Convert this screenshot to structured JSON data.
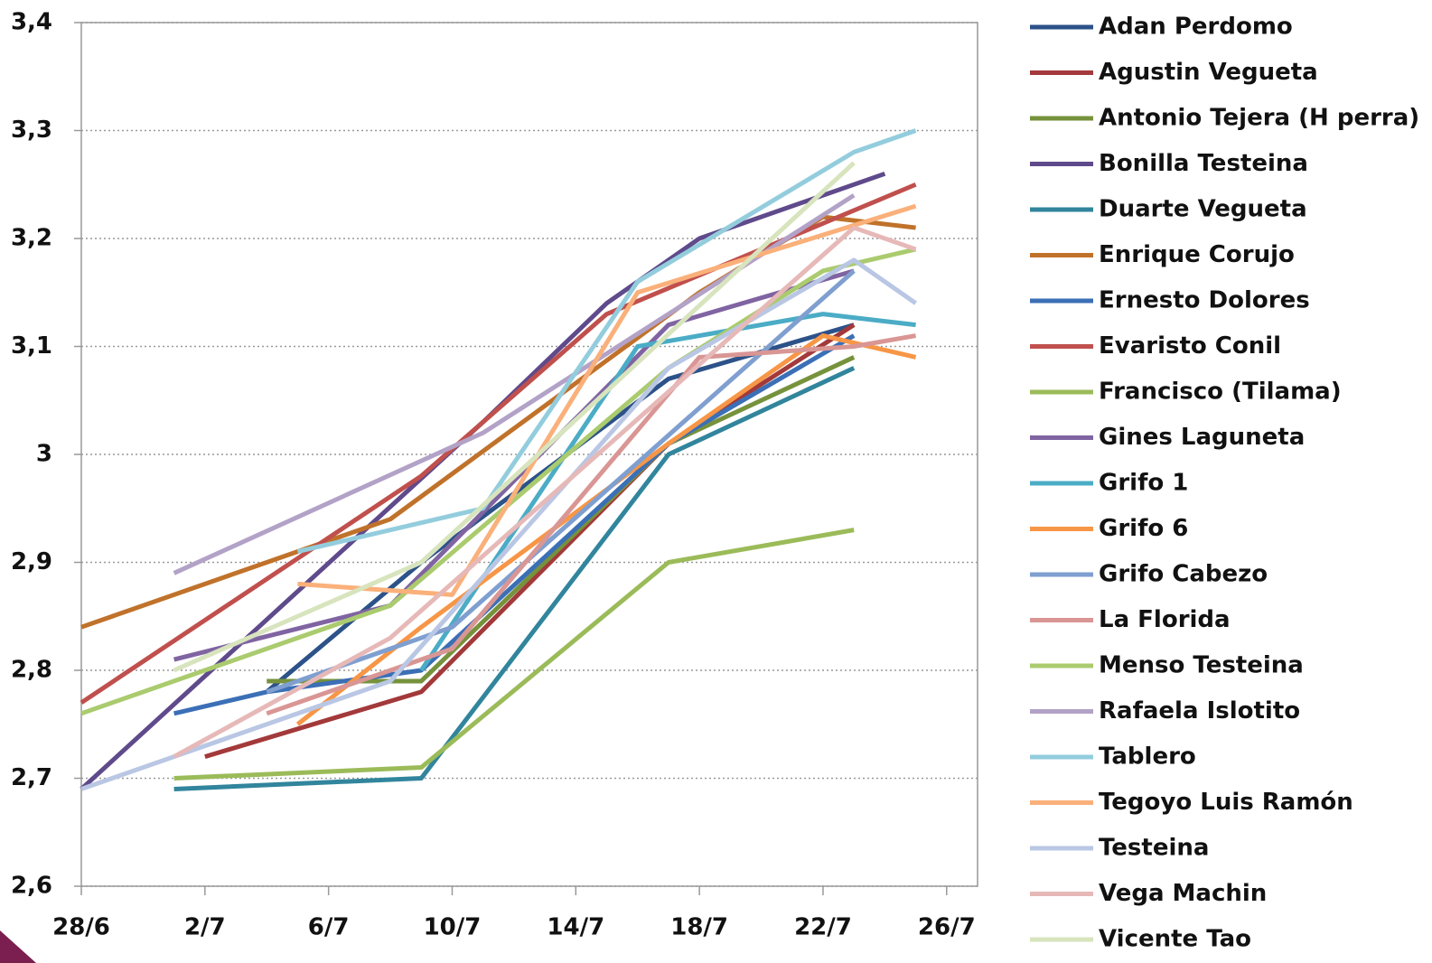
{
  "chart_data": {
    "type": "line",
    "legend": "right",
    "grid": true,
    "xlim": [
      "28/6",
      "27/7"
    ],
    "xticks": [
      "28/6",
      "2/7",
      "6/7",
      "10/7",
      "14/7",
      "18/7",
      "22/7",
      "26/7"
    ],
    "ylim": [
      2.6,
      3.4
    ],
    "yticks": [
      {
        "value": 2.6,
        "label": "2,6"
      },
      {
        "value": 2.7,
        "label": "2,7"
      },
      {
        "value": 2.8,
        "label": "2,8"
      },
      {
        "value": 2.9,
        "label": "2,9"
      },
      3,
      {
        "value": 3.1,
        "label": "3,1"
      },
      {
        "value": 3.2,
        "label": "3,2"
      },
      {
        "value": 3.3,
        "label": "3,3"
      },
      {
        "value": 3.4,
        "label": "3,4"
      }
    ],
    "series": [
      {
        "name": "Adan Perdomo",
        "color": "#2c5289",
        "x": [
          "4/7",
          "9/7",
          "17/7",
          "23/7"
        ],
        "values": [
          2.78,
          2.9,
          3.07,
          3.12
        ]
      },
      {
        "name": "Agustin Vegueta",
        "color": "#a3393a",
        "x": [
          "2/7",
          "9/7",
          "17/7",
          "23/7"
        ],
        "values": [
          2.72,
          2.78,
          3.01,
          3.12
        ]
      },
      {
        "name": "Antonio Tejera (H perra)",
        "color": "#76923c",
        "x": [
          "4/7",
          "9/7",
          "17/7",
          "23/7"
        ],
        "values": [
          2.79,
          2.79,
          3.01,
          3.09
        ]
      },
      {
        "name": "Bonilla Testeina",
        "color": "#5f4a8b",
        "x": [
          "28/6",
          "11/7",
          "15/7",
          "18/7",
          "24/7"
        ],
        "values": [
          2.69,
          3.03,
          3.14,
          3.2,
          3.26
        ]
      },
      {
        "name": "Duarte Vegueta",
        "color": "#31859c",
        "x": [
          "1/7",
          "9/7",
          "17/7",
          "23/7"
        ],
        "values": [
          2.69,
          2.7,
          3.0,
          3.08
        ]
      },
      {
        "name": "Enrique Corujo",
        "color": "#c0722a",
        "x": [
          "28/6",
          "8/7",
          "18/7",
          "22/7",
          "25/7"
        ],
        "values": [
          2.84,
          2.94,
          3.15,
          3.22,
          3.21
        ]
      },
      {
        "name": "Ernesto Dolores",
        "color": "#3b6fb6",
        "x": [
          "1/7",
          "4/7",
          "9/7",
          "17/7",
          "23/7"
        ],
        "values": [
          2.76,
          2.78,
          2.8,
          3.01,
          3.11
        ]
      },
      {
        "name": "Evaristo Conil",
        "color": "#c0504d",
        "x": [
          "28/6",
          "9/7",
          "15/7",
          "25/7"
        ],
        "values": [
          2.77,
          2.98,
          3.13,
          3.25
        ]
      },
      {
        "name": "Francisco (Tilama)",
        "color": "#9bbb59",
        "x": [
          "1/7",
          "9/7",
          "17/7",
          "23/7"
        ],
        "values": [
          2.7,
          2.71,
          2.9,
          2.93
        ]
      },
      {
        "name": "Gines Laguneta",
        "color": "#8064a2",
        "x": [
          "1/7",
          "8/7",
          "17/7",
          "23/7"
        ],
        "values": [
          2.81,
          2.86,
          3.12,
          3.17
        ]
      },
      {
        "name": "Grifo 1",
        "color": "#4bacc6",
        "x": [
          "9/7",
          "16/7",
          "22/7",
          "25/7"
        ],
        "values": [
          2.8,
          3.1,
          3.13,
          3.12
        ]
      },
      {
        "name": "Grifo 6",
        "color": "#f79646",
        "x": [
          "5/7",
          "9/7",
          "17/7",
          "22/7",
          "25/7"
        ],
        "values": [
          2.75,
          2.84,
          3.01,
          3.11,
          3.09
        ]
      },
      {
        "name": "Grifo Cabezo",
        "color": "#7f9fd0",
        "x": [
          "4/7",
          "10/7",
          "23/7"
        ],
        "values": [
          2.78,
          2.84,
          3.17
        ]
      },
      {
        "name": "La Florida",
        "color": "#d99694",
        "x": [
          "4/7",
          "10/7",
          "18/7",
          "23/7",
          "25/7"
        ],
        "values": [
          2.76,
          2.82,
          3.09,
          3.1,
          3.11
        ]
      },
      {
        "name": "Menso Testeina",
        "color": "#aacb6e",
        "x": [
          "28/6",
          "8/7",
          "17/7",
          "22/7",
          "25/7"
        ],
        "values": [
          2.76,
          2.86,
          3.08,
          3.17,
          3.19
        ]
      },
      {
        "name": "Rafaela Islotito",
        "color": "#b3a2c7",
        "x": [
          "1/7",
          "11/7",
          "23/7"
        ],
        "values": [
          2.89,
          3.02,
          3.24
        ]
      },
      {
        "name": "Tablero",
        "color": "#93cddd",
        "x": [
          "5/7",
          "11/7",
          "16/7",
          "23/7",
          "25/7"
        ],
        "values": [
          2.91,
          2.95,
          3.16,
          3.28,
          3.3
        ]
      },
      {
        "name": "Tegoyo Luis Ramón",
        "color": "#fab07a",
        "x": [
          "5/7",
          "10/7",
          "16/7",
          "25/7"
        ],
        "values": [
          2.88,
          2.87,
          3.15,
          3.23
        ]
      },
      {
        "name": "Testeina",
        "color": "#b9c7e4",
        "x": [
          "28/6",
          "8/7",
          "17/7",
          "23/7",
          "25/7"
        ],
        "values": [
          2.69,
          2.79,
          3.08,
          3.18,
          3.14
        ]
      },
      {
        "name": "Vega Machin",
        "color": "#e6b9b8",
        "x": [
          "1/7",
          "8/7",
          "23/7",
          "25/7"
        ],
        "values": [
          2.72,
          2.83,
          3.21,
          3.19
        ]
      },
      {
        "name": "Vicente Tao",
        "color": "#d7e4bd",
        "x": [
          "1/7",
          "9/7",
          "23/7"
        ],
        "values": [
          2.8,
          2.9,
          3.27
        ]
      }
    ]
  }
}
